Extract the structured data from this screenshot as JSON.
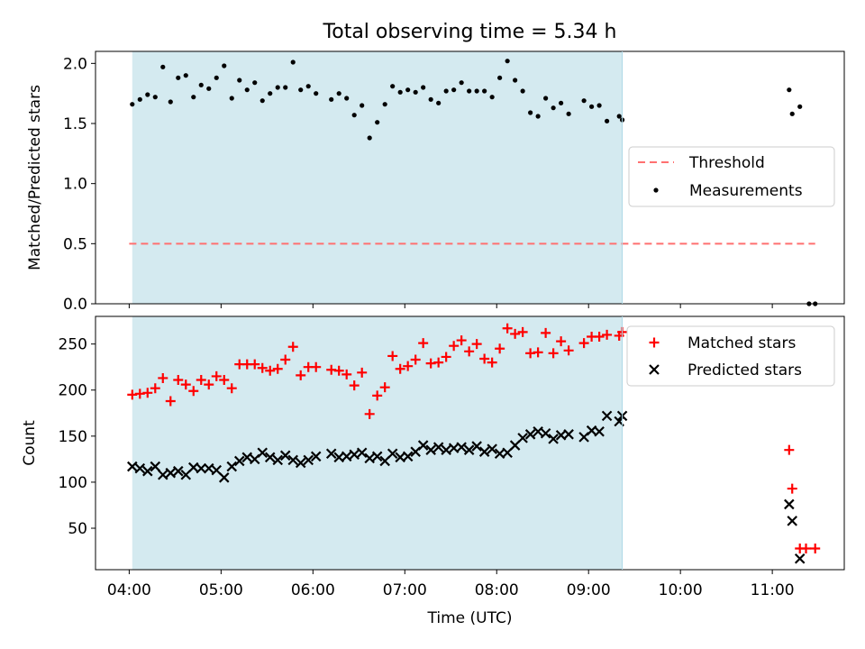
{
  "chart_data": [
    {
      "type": "scatter",
      "title": "Total observing time = 5.34 h",
      "ylabel": "Matched/Predicted stars",
      "xlabel": "",
      "ylim": [
        0,
        2.1
      ],
      "yticks": [
        0.0,
        0.5,
        1.0,
        1.5,
        2.0
      ],
      "ytick_labels": [
        "0.0",
        "0.5",
        "1.0",
        "1.5",
        "2.0"
      ],
      "shaded_span": [
        "04:02",
        "09:22"
      ],
      "legend_position": "center-right",
      "series": [
        {
          "name": "Threshold",
          "style": "dashed-line",
          "color": "#ff7070",
          "points": [
            [
              "04:00",
              0.5
            ],
            [
              "11:28",
              0.5
            ]
          ]
        },
        {
          "name": "Measurements",
          "style": "dot",
          "color": "#000000",
          "points": [
            [
              "04:02",
              1.66
            ],
            [
              "04:07",
              1.7
            ],
            [
              "04:12",
              1.74
            ],
            [
              "04:17",
              1.72
            ],
            [
              "04:22",
              1.97
            ],
            [
              "04:27",
              1.68
            ],
            [
              "04:32",
              1.88
            ],
            [
              "04:37",
              1.9
            ],
            [
              "04:42",
              1.72
            ],
            [
              "04:47",
              1.82
            ],
            [
              "04:52",
              1.79
            ],
            [
              "04:57",
              1.88
            ],
            [
              "05:02",
              1.98
            ],
            [
              "05:07",
              1.71
            ],
            [
              "05:12",
              1.86
            ],
            [
              "05:17",
              1.78
            ],
            [
              "05:22",
              1.84
            ],
            [
              "05:27",
              1.69
            ],
            [
              "05:32",
              1.75
            ],
            [
              "05:37",
              1.8
            ],
            [
              "05:42",
              1.8
            ],
            [
              "05:47",
              2.01
            ],
            [
              "05:52",
              1.78
            ],
            [
              "05:57",
              1.81
            ],
            [
              "06:02",
              1.75
            ],
            [
              "06:12",
              1.7
            ],
            [
              "06:17",
              1.75
            ],
            [
              "06:22",
              1.71
            ],
            [
              "06:27",
              1.57
            ],
            [
              "06:32",
              1.65
            ],
            [
              "06:37",
              1.38
            ],
            [
              "06:42",
              1.51
            ],
            [
              "06:47",
              1.66
            ],
            [
              "06:52",
              1.81
            ],
            [
              "06:57",
              1.76
            ],
            [
              "07:02",
              1.78
            ],
            [
              "07:07",
              1.76
            ],
            [
              "07:12",
              1.8
            ],
            [
              "07:17",
              1.7
            ],
            [
              "07:22",
              1.67
            ],
            [
              "07:27",
              1.77
            ],
            [
              "07:32",
              1.78
            ],
            [
              "07:37",
              1.84
            ],
            [
              "07:42",
              1.77
            ],
            [
              "07:47",
              1.77
            ],
            [
              "07:52",
              1.77
            ],
            [
              "07:57",
              1.72
            ],
            [
              "08:02",
              1.88
            ],
            [
              "08:07",
              2.02
            ],
            [
              "08:12",
              1.86
            ],
            [
              "08:17",
              1.77
            ],
            [
              "08:22",
              1.59
            ],
            [
              "08:27",
              1.56
            ],
            [
              "08:32",
              1.71
            ],
            [
              "08:37",
              1.63
            ],
            [
              "08:42",
              1.67
            ],
            [
              "08:47",
              1.58
            ],
            [
              "08:57",
              1.69
            ],
            [
              "09:02",
              1.64
            ],
            [
              "09:07",
              1.65
            ],
            [
              "09:12",
              1.52
            ],
            [
              "09:20",
              1.56
            ],
            [
              "09:22",
              1.53
            ],
            [
              "11:11",
              1.78
            ],
            [
              "11:13",
              1.58
            ],
            [
              "11:18",
              1.64
            ],
            [
              "11:24",
              0.0
            ],
            [
              "11:28",
              0.0
            ]
          ]
        }
      ]
    },
    {
      "type": "scatter",
      "title": "",
      "xlabel": "Time (UTC)",
      "ylabel": "Count",
      "ylim": [
        5,
        280
      ],
      "yticks": [
        50,
        100,
        150,
        200,
        250
      ],
      "ytick_labels": [
        "50",
        "100",
        "150",
        "200",
        "250"
      ],
      "x_range": [
        "03:38",
        "11:47"
      ],
      "xticks": [
        "04:00",
        "05:00",
        "06:00",
        "07:00",
        "08:00",
        "09:00",
        "10:00",
        "11:00"
      ],
      "xtick_labels": [
        "04:00",
        "05:00",
        "06:00",
        "07:00",
        "08:00",
        "09:00",
        "10:00",
        "11:00"
      ],
      "shaded_span": [
        "04:02",
        "09:22"
      ],
      "legend_position": "top-right",
      "series": [
        {
          "name": "Matched stars",
          "marker": "plus",
          "color": "#ff0000",
          "points": [
            [
              "04:02",
              195
            ],
            [
              "04:07",
              196
            ],
            [
              "04:12",
              197
            ],
            [
              "04:17",
              202
            ],
            [
              "04:22",
              213
            ],
            [
              "04:27",
              188
            ],
            [
              "04:32",
              211
            ],
            [
              "04:37",
              206
            ],
            [
              "04:42",
              199
            ],
            [
              "04:47",
              211
            ],
            [
              "04:52",
              206
            ],
            [
              "04:57",
              215
            ],
            [
              "05:02",
              211
            ],
            [
              "05:07",
              202
            ],
            [
              "05:12",
              228
            ],
            [
              "05:17",
              228
            ],
            [
              "05:22",
              228
            ],
            [
              "05:27",
              224
            ],
            [
              "05:32",
              221
            ],
            [
              "05:37",
              223
            ],
            [
              "05:42",
              233
            ],
            [
              "05:47",
              247
            ],
            [
              "05:52",
              216
            ],
            [
              "05:57",
              225
            ],
            [
              "06:02",
              225
            ],
            [
              "06:12",
              222
            ],
            [
              "06:17",
              221
            ],
            [
              "06:22",
              217
            ],
            [
              "06:27",
              205
            ],
            [
              "06:32",
              219
            ],
            [
              "06:37",
              174
            ],
            [
              "06:42",
              194
            ],
            [
              "06:47",
              203
            ],
            [
              "06:52",
              237
            ],
            [
              "06:57",
              223
            ],
            [
              "07:02",
              226
            ],
            [
              "07:07",
              233
            ],
            [
              "07:12",
              251
            ],
            [
              "07:17",
              229
            ],
            [
              "07:22",
              230
            ],
            [
              "07:27",
              236
            ],
            [
              "07:32",
              248
            ],
            [
              "07:37",
              254
            ],
            [
              "07:42",
              242
            ],
            [
              "07:47",
              250
            ],
            [
              "07:52",
              234
            ],
            [
              "07:57",
              230
            ],
            [
              "08:02",
              245
            ],
            [
              "08:07",
              267
            ],
            [
              "08:12",
              261
            ],
            [
              "08:17",
              263
            ],
            [
              "08:22",
              240
            ],
            [
              "08:27",
              241
            ],
            [
              "08:32",
              262
            ],
            [
              "08:37",
              240
            ],
            [
              "08:42",
              253
            ],
            [
              "08:47",
              243
            ],
            [
              "08:57",
              251
            ],
            [
              "09:02",
              258
            ],
            [
              "09:07",
              258
            ],
            [
              "09:12",
              260
            ],
            [
              "09:20",
              259
            ],
            [
              "09:22",
              263
            ],
            [
              "11:11",
              135
            ],
            [
              "11:13",
              93
            ],
            [
              "11:18",
              28
            ],
            [
              "11:22",
              28
            ],
            [
              "11:28",
              28
            ]
          ]
        },
        {
          "name": "Predicted stars",
          "marker": "x",
          "color": "#000000",
          "points": [
            [
              "04:02",
              117
            ],
            [
              "04:07",
              115
            ],
            [
              "04:12",
              112
            ],
            [
              "04:17",
              117
            ],
            [
              "04:22",
              108
            ],
            [
              "04:27",
              110
            ],
            [
              "04:32",
              112
            ],
            [
              "04:37",
              108
            ],
            [
              "04:42",
              116
            ],
            [
              "04:47",
              115
            ],
            [
              "04:52",
              115
            ],
            [
              "04:57",
              113
            ],
            [
              "05:02",
              105
            ],
            [
              "05:07",
              117
            ],
            [
              "05:12",
              123
            ],
            [
              "05:17",
              127
            ],
            [
              "05:22",
              125
            ],
            [
              "05:27",
              132
            ],
            [
              "05:32",
              127
            ],
            [
              "05:37",
              124
            ],
            [
              "05:42",
              129
            ],
            [
              "05:47",
              124
            ],
            [
              "05:52",
              121
            ],
            [
              "05:57",
              124
            ],
            [
              "06:02",
              128
            ],
            [
              "06:12",
              131
            ],
            [
              "06:17",
              127
            ],
            [
              "06:22",
              128
            ],
            [
              "06:27",
              130
            ],
            [
              "06:32",
              132
            ],
            [
              "06:37",
              126
            ],
            [
              "06:42",
              128
            ],
            [
              "06:47",
              123
            ],
            [
              "06:52",
              131
            ],
            [
              "06:57",
              127
            ],
            [
              "07:02",
              128
            ],
            [
              "07:07",
              133
            ],
            [
              "07:12",
              140
            ],
            [
              "07:17",
              135
            ],
            [
              "07:22",
              138
            ],
            [
              "07:27",
              135
            ],
            [
              "07:32",
              137
            ],
            [
              "07:37",
              138
            ],
            [
              "07:42",
              135
            ],
            [
              "07:47",
              139
            ],
            [
              "07:52",
              133
            ],
            [
              "07:57",
              136
            ],
            [
              "08:02",
              131
            ],
            [
              "08:07",
              132
            ],
            [
              "08:12",
              140
            ],
            [
              "08:17",
              148
            ],
            [
              "08:22",
              152
            ],
            [
              "08:27",
              155
            ],
            [
              "08:32",
              153
            ],
            [
              "08:37",
              147
            ],
            [
              "08:42",
              151
            ],
            [
              "08:47",
              152
            ],
            [
              "08:57",
              149
            ],
            [
              "09:02",
              156
            ],
            [
              "09:07",
              155
            ],
            [
              "09:12",
              172
            ],
            [
              "09:20",
              166
            ],
            [
              "09:22",
              172
            ],
            [
              "11:11",
              76
            ],
            [
              "11:13",
              58
            ],
            [
              "11:18",
              17
            ]
          ]
        }
      ]
    }
  ]
}
